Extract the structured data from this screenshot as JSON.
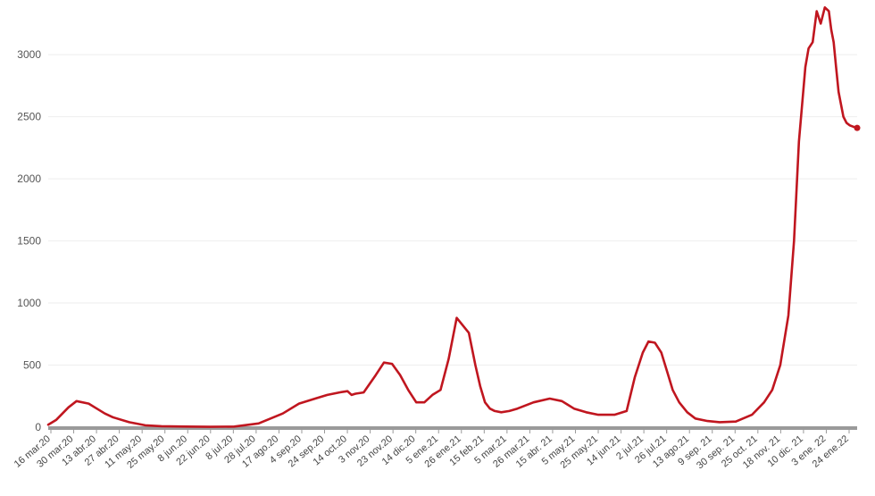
{
  "chart_data": {
    "type": "line",
    "title": "",
    "xlabel": "",
    "ylabel": "",
    "ylim": [
      0,
      3440
    ],
    "grid": true,
    "y_ticks": [
      {
        "value": 0,
        "label": "0"
      },
      {
        "value": 500,
        "label": "500"
      },
      {
        "value": 1000,
        "label": "1000"
      },
      {
        "value": 1500,
        "label": "1500"
      },
      {
        "value": 2000,
        "label": "2000"
      },
      {
        "value": 2500,
        "label": "2500"
      },
      {
        "value": 3000,
        "label": "3000"
      }
    ],
    "x_tick_labels": [
      "16 mar.20",
      "30 mar.20",
      "13 abr.20",
      "27 abr.20",
      "11 may.20",
      "25 may.20",
      "8 jun.20",
      "22 jun.20",
      "8 jul.20",
      "28 jul.20",
      "17 ago.20",
      "4 sep.20",
      "24 sep.20",
      "14 oct.20",
      "3 nov.20",
      "23 nov.20",
      "14 dic.20",
      "5 ene.21",
      "26 ene.21",
      "15 feb.21",
      "5 mar.21",
      "26 mar.21",
      "15 abr. 21",
      "5 may.21",
      "25 may.21",
      "14 jun.21",
      "2 jul.21",
      "26 jul.21",
      "13 ago.21",
      "9 sep. 21",
      "30 sep. 21",
      "25 oct. 21",
      "18 nov. 21",
      "10 dic. 21",
      "3 ene. 22",
      "24 ene.22"
    ],
    "series": [
      {
        "color": "#c0161f",
        "x": [
          0,
          0.01,
          0.025,
          0.035,
          0.05,
          0.06,
          0.07,
          0.08,
          0.1,
          0.12,
          0.14,
          0.17,
          0.2,
          0.23,
          0.26,
          0.29,
          0.31,
          0.33,
          0.345,
          0.36,
          0.37,
          0.375,
          0.38,
          0.39,
          0.405,
          0.415,
          0.425,
          0.435,
          0.445,
          0.455,
          0.465,
          0.475,
          0.485,
          0.495,
          0.505,
          0.52,
          0.528,
          0.534,
          0.54,
          0.546,
          0.552,
          0.56,
          0.57,
          0.58,
          0.6,
          0.62,
          0.635,
          0.65,
          0.665,
          0.68,
          0.7,
          0.715,
          0.725,
          0.735,
          0.742,
          0.75,
          0.758,
          0.765,
          0.772,
          0.78,
          0.79,
          0.8,
          0.815,
          0.83,
          0.85,
          0.87,
          0.885,
          0.895,
          0.905,
          0.915,
          0.922,
          0.928,
          0.932,
          0.936,
          0.94,
          0.945,
          0.95,
          0.955,
          0.96,
          0.965,
          0.968,
          0.971,
          0.974,
          0.977,
          0.98,
          0.983,
          0.987,
          0.991,
          0.995,
          1.0
        ],
        "values": [
          20,
          60,
          160,
          210,
          190,
          150,
          110,
          80,
          40,
          15,
          8,
          5,
          3,
          5,
          30,
          110,
          190,
          230,
          260,
          280,
          290,
          260,
          270,
          280,
          420,
          520,
          510,
          420,
          300,
          200,
          200,
          260,
          300,
          550,
          880,
          760,
          500,
          330,
          200,
          150,
          130,
          120,
          130,
          150,
          200,
          230,
          210,
          150,
          120,
          100,
          100,
          130,
          400,
          600,
          690,
          680,
          600,
          450,
          300,
          200,
          120,
          70,
          50,
          40,
          45,
          100,
          200,
          300,
          500,
          900,
          1500,
          2300,
          2600,
          2900,
          3050,
          3100,
          3350,
          3250,
          3380,
          3350,
          3200,
          3100,
          2900,
          2700,
          2600,
          2500,
          2450,
          2430,
          2420,
          2410
        ]
      }
    ]
  }
}
